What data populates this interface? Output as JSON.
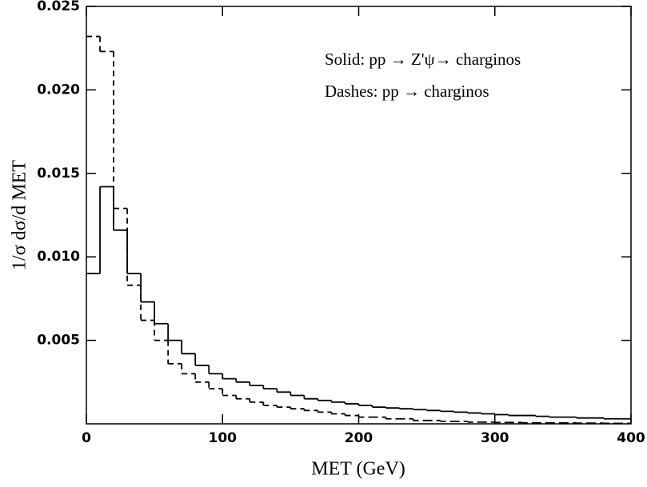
{
  "chart_data": {
    "type": "histogram-step",
    "xlabel": "MET (GeV)",
    "ylabel": "1/σ dσ/d MET",
    "bins": [
      0,
      10,
      20,
      30,
      40,
      50,
      60,
      70,
      80,
      90,
      100,
      110,
      120,
      130,
      140,
      150,
      160,
      170,
      180,
      190,
      200,
      210,
      220,
      230,
      240,
      250,
      260,
      270,
      280,
      290,
      300,
      310,
      320,
      330,
      340,
      350,
      360,
      370,
      380,
      390,
      400
    ],
    "series": [
      {
        "name": "Solid: pp → Z'ψ→ charginos",
        "color": "#000000",
        "dash": false,
        "values": [
          0.009,
          0.0142,
          0.0116,
          0.009,
          0.0073,
          0.006,
          0.005,
          0.0042,
          0.0035,
          0.003,
          0.0027,
          0.0025,
          0.0023,
          0.0021,
          0.0019,
          0.0017,
          0.0015,
          0.0014,
          0.0013,
          0.0012,
          0.0011,
          0.001,
          0.00095,
          0.0009,
          0.00085,
          0.0008,
          0.00075,
          0.0007,
          0.00065,
          0.0006,
          0.00055,
          0.0005,
          0.0005,
          0.00045,
          0.0004,
          0.0004,
          0.00035,
          0.00035,
          0.0003,
          0.0003
        ]
      },
      {
        "name": "Dashes: pp → charginos",
        "color": "#000000",
        "dash": true,
        "values": [
          0.0232,
          0.0223,
          0.0129,
          0.0083,
          0.0062,
          0.005,
          0.0036,
          0.003,
          0.0025,
          0.0021,
          0.0017,
          0.0015,
          0.0013,
          0.0011,
          0.001,
          0.0009,
          0.0008,
          0.0007,
          0.0006,
          0.0005,
          0.0004,
          0.0004,
          0.0003,
          0.0003,
          0.0002,
          0.0002,
          0.00015,
          0.00015,
          0.0001,
          0.0001,
          8e-05,
          8e-05,
          6e-05,
          6e-05,
          5e-05,
          5e-05,
          4e-05,
          4e-05,
          3e-05,
          3e-05
        ]
      }
    ],
    "xlim": [
      0,
      400
    ],
    "ylim": [
      0,
      0.025
    ],
    "xticks": [
      0,
      100,
      200,
      300,
      400
    ],
    "yticks": [
      {
        "value": 0.005,
        "label": "0.005"
      },
      {
        "value": 0.01,
        "label": "0.010"
      },
      {
        "value": 0.015,
        "label": "0.015"
      },
      {
        "value": 0.02,
        "label": "0.020"
      },
      {
        "value": 0.025,
        "label": "0.025"
      }
    ]
  }
}
